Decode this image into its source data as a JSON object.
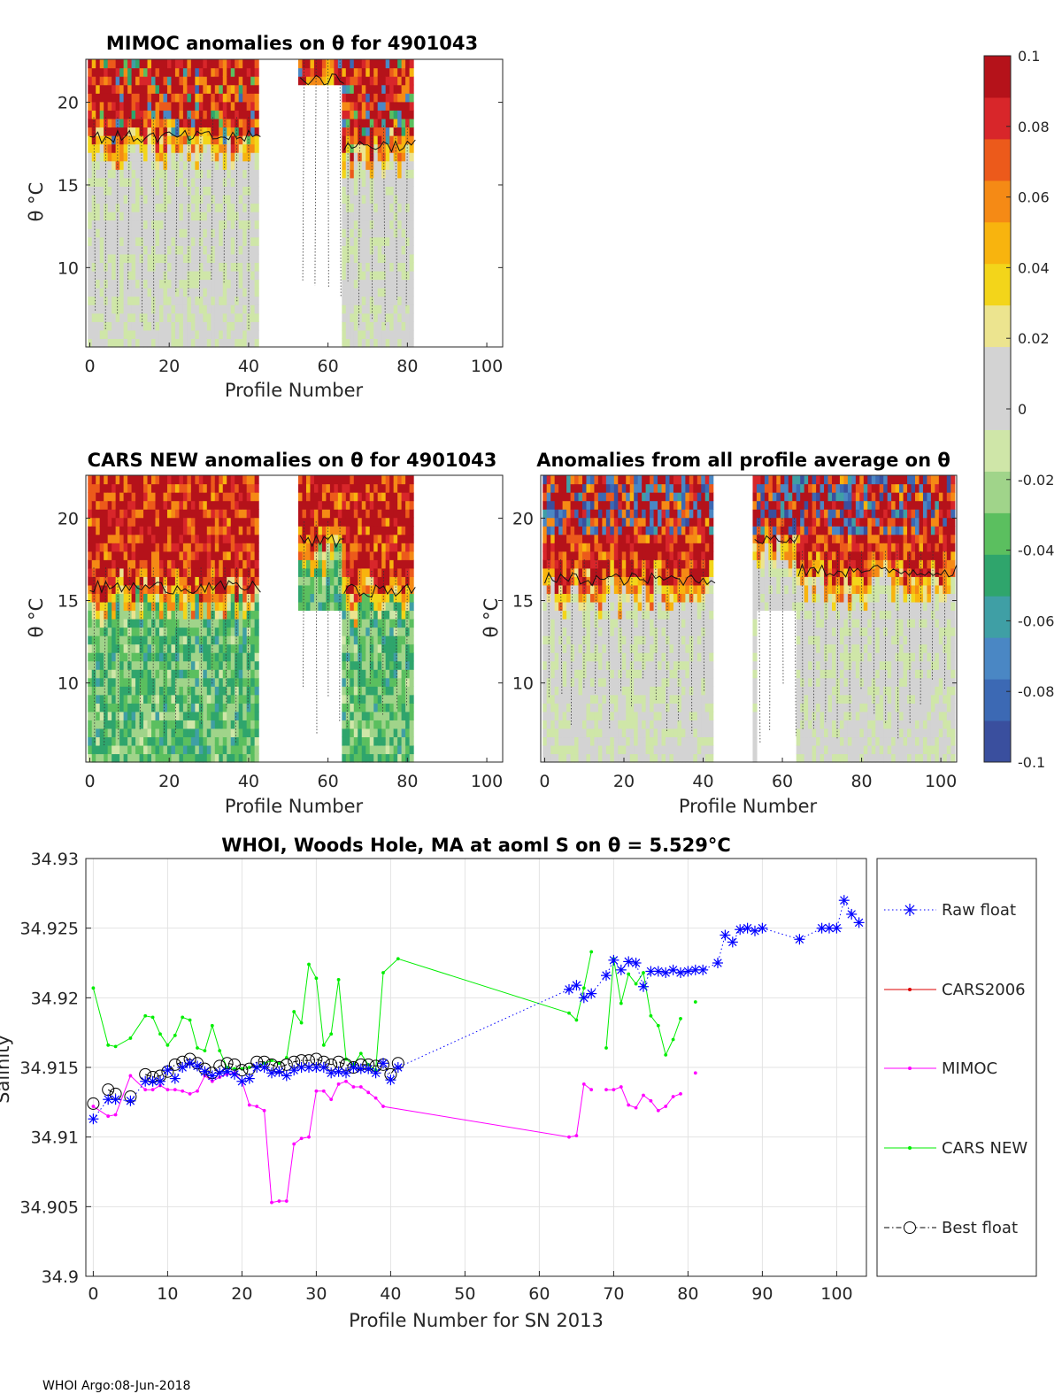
{
  "colors": {
    "colormap": [
      "#3a4f9e",
      "#3c69b4",
      "#4a87c4",
      "#3f9fa5",
      "#2fa56c",
      "#5bbf5f",
      "#a0d48a",
      "#cfe6a8",
      "#d3d3d3",
      "#d3d3d3",
      "#ece48f",
      "#f3d51a",
      "#f8b40e",
      "#f58a15",
      "#ec5a1b",
      "#d8262a",
      "#b5121a"
    ],
    "raw_float": "#0000ff",
    "cars2006": "#dd0000",
    "mimoc": "#ff00ff",
    "cars_new": "#00ee00",
    "best_float": "#000000",
    "grid": "#e3e3e3"
  },
  "chart_data": [
    {
      "type": "heatmap",
      "id": "mimoc",
      "title": "MIMOC anomalies on θ  for 4901043",
      "xlabel": "Profile Number",
      "ylabel": "θ °C",
      "xlim": [
        -1,
        104
      ],
      "ylim": [
        5.2,
        22.6
      ],
      "xticks": [
        0,
        20,
        40,
        60,
        80,
        100
      ],
      "yticks": [
        10,
        15,
        20
      ],
      "data_columns": [
        [
          0,
          43
        ],
        [
          53,
          64
        ],
        [
          64,
          82
        ]
      ],
      "warm_above": [
        18.1,
        21.6,
        17.6
      ],
      "missing_blocks": [
        {
          "x": [
            53,
            64
          ],
          "y": [
            5.2,
            21.1
          ]
        }
      ]
    },
    {
      "type": "heatmap",
      "id": "cars_new",
      "title": "CARS NEW anomalies on θ for 4901043",
      "xlabel": "Profile Number",
      "ylabel": "θ °C",
      "xlim": [
        -1,
        104
      ],
      "ylim": [
        5.2,
        22.6
      ],
      "xticks": [
        0,
        20,
        40,
        60,
        80,
        100
      ],
      "yticks": [
        10,
        15,
        20
      ],
      "data_columns": [
        [
          0,
          43
        ],
        [
          53,
          64
        ],
        [
          64,
          82
        ]
      ],
      "warm_above": [
        16.0,
        18.8,
        15.8
      ],
      "missing_blocks": [
        {
          "x": [
            53,
            64
          ],
          "y": [
            5.2,
            14.2
          ]
        }
      ]
    },
    {
      "type": "heatmap",
      "id": "profile_avg",
      "title": "Anomalies from all profile average on θ",
      "xlabel": "Profile Number",
      "ylabel": "θ °C",
      "xlim": [
        -1,
        104
      ],
      "ylim": [
        5.2,
        22.6
      ],
      "xticks": [
        0,
        20,
        40,
        60,
        80,
        100
      ],
      "yticks": [
        10,
        15,
        20
      ],
      "data_columns": [
        [
          0,
          43
        ],
        [
          53,
          64
        ],
        [
          64,
          104
        ]
      ],
      "warm_above": [
        16.5,
        19.0,
        17.0
      ],
      "missing_blocks": [
        {
          "x": [
            54,
            64
          ],
          "y": [
            5.2,
            14.4
          ]
        }
      ]
    },
    {
      "type": "colorbar",
      "id": "colorbar",
      "range": [
        -0.1,
        0.1
      ],
      "ticks": [
        0.1,
        0.08,
        0.06,
        0.04,
        0.02,
        0,
        -0.02,
        -0.04,
        -0.06,
        -0.08,
        -0.1
      ],
      "tick_labels": [
        "0.1",
        "0.08",
        "0.06",
        "0.04",
        "0.02",
        "0",
        "-0.02",
        "-0.04",
        "-0.06",
        "-0.08",
        "-0.1"
      ]
    },
    {
      "type": "line",
      "id": "salinity",
      "title": "WHOI, Woods Hole, MA at aoml S on θ = 5.529°C",
      "xlabel": "Profile Number for SN 2013",
      "ylabel": "Salinity",
      "xlim": [
        -1,
        104
      ],
      "ylim": [
        34.9,
        34.93
      ],
      "xticks": [
        0,
        10,
        20,
        30,
        40,
        50,
        60,
        70,
        80,
        90,
        100
      ],
      "yticks": [
        34.9,
        34.905,
        34.91,
        34.915,
        34.92,
        34.925,
        34.93
      ],
      "ytick_labels": [
        "34.9",
        "34.905",
        "34.91",
        "34.915",
        "34.92",
        "34.925",
        "34.93"
      ],
      "grid": true,
      "legend": [
        "Raw float",
        "CARS2006",
        "MIMOC",
        "CARS NEW",
        "Best float"
      ],
      "series": [
        {
          "name": "Raw float",
          "style": "dotted",
          "marker": "asterisk",
          "x": [
            0,
            2,
            3,
            5,
            7,
            8,
            9,
            10,
            11,
            12,
            13,
            14,
            15,
            16,
            17,
            18,
            19,
            20,
            21,
            22,
            23,
            24,
            25,
            26,
            27,
            28,
            29,
            30,
            31,
            32,
            33,
            34,
            35,
            36,
            37,
            38,
            39,
            40,
            41,
            64,
            65,
            66,
            67,
            69,
            70,
            71,
            72,
            73,
            74,
            75,
            76,
            77,
            78,
            79,
            80,
            81,
            82,
            84,
            85,
            86,
            87,
            88,
            89,
            90,
            95,
            98,
            99,
            100,
            101,
            102,
            103
          ],
          "values": [
            34.9113,
            34.9127,
            34.9127,
            34.9126,
            34.914,
            34.914,
            34.914,
            34.9148,
            34.9142,
            34.915,
            34.9153,
            34.9151,
            34.9147,
            34.9144,
            34.9146,
            34.9147,
            34.9145,
            34.914,
            34.9142,
            34.915,
            34.915,
            34.9146,
            34.9147,
            34.9144,
            34.9148,
            34.915,
            34.915,
            34.915,
            34.915,
            34.9146,
            34.9147,
            34.9146,
            34.915,
            34.9149,
            34.9149,
            34.9146,
            34.9153,
            34.9141,
            34.915,
            34.9206,
            34.9209,
            34.92,
            34.9203,
            34.9216,
            34.9227,
            34.922,
            34.9226,
            34.9225,
            34.9208,
            34.9219,
            34.9219,
            34.9218,
            34.922,
            34.9218,
            34.9219,
            34.922,
            34.922,
            34.9225,
            34.9245,
            34.924,
            34.9249,
            34.925,
            34.9248,
            34.925,
            34.9242,
            34.925,
            34.925,
            34.925,
            34.927,
            34.926,
            34.9254
          ]
        },
        {
          "name": "CARS2006",
          "style": "solid",
          "marker": "dot",
          "x": [],
          "values": []
        },
        {
          "name": "MIMOC",
          "style": "solid",
          "marker": "dot",
          "x": [
            0,
            2,
            3,
            5,
            7,
            8,
            9,
            10,
            11,
            12,
            13,
            14,
            15,
            16,
            17,
            18,
            19,
            20,
            21,
            22,
            23,
            24,
            25,
            26,
            27,
            28,
            29,
            30,
            31,
            32,
            33,
            34,
            35,
            36,
            37,
            38,
            39,
            64,
            65,
            66,
            67,
            69,
            70,
            71,
            72,
            73,
            74,
            75,
            76,
            77,
            78,
            79,
            81
          ],
          "values": [
            34.9122,
            34.9115,
            34.9116,
            34.9144,
            34.9134,
            34.9134,
            34.9137,
            34.9134,
            34.9134,
            34.9133,
            34.9131,
            34.9133,
            34.9144,
            34.914,
            34.9143,
            34.9145,
            34.9146,
            34.914,
            34.9123,
            34.9122,
            34.9119,
            34.9053,
            34.9054,
            34.9054,
            34.9095,
            34.9099,
            34.91,
            34.9133,
            34.9133,
            34.9127,
            34.9138,
            34.914,
            34.9136,
            34.9136,
            34.9132,
            34.9128,
            34.9122,
            34.91,
            34.9101,
            34.9138,
            34.9134,
            34.9134,
            34.9134,
            34.9136,
            34.9123,
            34.9121,
            34.913,
            34.9126,
            34.9119,
            34.9122,
            34.9129,
            34.9131,
            34.9146
          ]
        },
        {
          "name": "CARS NEW",
          "style": "solid",
          "marker": "dot",
          "x": [
            0,
            2,
            3,
            5,
            7,
            8,
            9,
            10,
            11,
            12,
            13,
            14,
            15,
            16,
            17,
            18,
            19,
            20,
            21,
            22,
            23,
            24,
            25,
            26,
            27,
            28,
            29,
            30,
            31,
            32,
            33,
            34,
            35,
            36,
            37,
            38,
            39,
            41,
            64,
            65,
            66,
            67,
            69,
            70,
            71,
            72,
            73,
            74,
            75,
            76,
            77,
            78,
            79,
            81
          ],
          "values": [
            34.9207,
            34.9166,
            34.9165,
            34.9171,
            34.9187,
            34.9186,
            34.9174,
            34.9166,
            34.9173,
            34.9186,
            34.9184,
            34.9164,
            34.9162,
            34.918,
            34.9162,
            34.915,
            34.9149,
            34.9149,
            34.915,
            34.915,
            34.9153,
            34.9155,
            34.9153,
            34.9157,
            34.919,
            34.9182,
            34.9224,
            34.9214,
            34.9166,
            34.9174,
            34.9213,
            34.9156,
            34.9152,
            34.916,
            34.9152,
            34.9148,
            34.9218,
            34.9228,
            34.9189,
            34.9184,
            34.9207,
            34.9233,
            34.9164,
            34.9228,
            34.9196,
            34.9217,
            34.921,
            34.9218,
            34.9187,
            34.918,
            34.9159,
            34.917,
            34.9185,
            34.9197
          ]
        },
        {
          "name": "Best float",
          "style": "dashdot",
          "marker": "circle",
          "x": [
            0,
            2,
            3,
            5,
            7,
            8,
            9,
            10,
            11,
            12,
            13,
            14,
            15,
            16,
            17,
            18,
            19,
            20,
            21,
            22,
            23,
            24,
            25,
            26,
            27,
            28,
            29,
            30,
            31,
            32,
            33,
            34,
            35,
            36,
            37,
            38,
            39,
            40,
            41
          ],
          "values": [
            34.9124,
            34.9134,
            34.9131,
            34.9129,
            34.9145,
            34.9143,
            34.9144,
            34.9147,
            34.9152,
            34.9154,
            34.9156,
            34.9153,
            34.9149,
            34.9146,
            34.9151,
            34.9153,
            34.9152,
            34.9148,
            34.9149,
            34.9154,
            34.9154,
            34.9152,
            34.915,
            34.9152,
            34.9154,
            34.9155,
            34.9155,
            34.9156,
            34.9154,
            34.9152,
            34.9154,
            34.9152,
            34.915,
            34.9152,
            34.9152,
            34.9151,
            34.9152,
            34.9145,
            34.9153
          ]
        }
      ]
    }
  ],
  "footer": "WHOI Argo:08-Jun-2018"
}
